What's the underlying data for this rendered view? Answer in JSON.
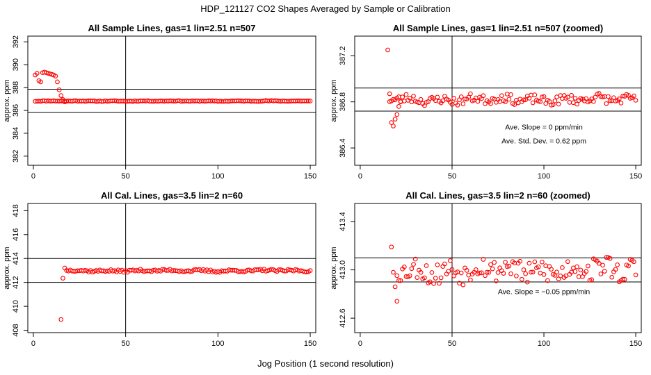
{
  "figure": {
    "title": "HDP_121127  CO2 Shapes Averaged by Sample or Calibration",
    "xlabel": "Jog Position (1 second resolution)"
  },
  "chart_data": [
    {
      "type": "scatter",
      "title": "All Sample Lines, gas=1 lin=2.51 n=507",
      "xlabel": "",
      "ylabel": "approx. ppm",
      "xlim": [
        -3,
        153
      ],
      "ylim": [
        381.2,
        392.5
      ],
      "xticks": [
        0,
        50,
        100,
        150
      ],
      "yticks": [
        382,
        384,
        386,
        388,
        390,
        392
      ],
      "hlines": [
        385.85,
        387.85
      ],
      "vline": 50,
      "color": "#ff0000",
      "marker": "open-circle",
      "gen": {
        "start": 1,
        "end": 150,
        "type": "sample",
        "base": 386.82,
        "noise": 0.03,
        "seed": 11
      },
      "points_head": [
        [
          1,
          389.1
        ],
        [
          2,
          389.25
        ],
        [
          3,
          388.6
        ],
        [
          4,
          388.5
        ],
        [
          5,
          389.3
        ],
        [
          6,
          389.35
        ],
        [
          7,
          389.3
        ],
        [
          8,
          389.25
        ],
        [
          9,
          389.2
        ],
        [
          10,
          389.15
        ],
        [
          11,
          389.1
        ],
        [
          12,
          389.0
        ],
        [
          13,
          388.5
        ],
        [
          14,
          387.8
        ],
        [
          15,
          387.3
        ],
        [
          16,
          386.95
        ],
        [
          17,
          386.75
        ],
        [
          18,
          386.8
        ]
      ],
      "annotations": []
    },
    {
      "type": "scatter",
      "title": "All Sample Lines, gas=1 lin=2.51 n=507 (zoomed)",
      "xlabel": "",
      "ylabel": "approx. ppm",
      "xlim": [
        -3,
        153
      ],
      "ylim": [
        386.25,
        387.37
      ],
      "xticks": [
        0,
        50,
        100,
        150
      ],
      "yticks": [
        386.4,
        386.8,
        387.2
      ],
      "hlines": [
        386.72,
        386.92
      ],
      "vline": 50,
      "color": "#ff0000",
      "marker": "open-circle",
      "gen": {
        "start": 16,
        "end": 150,
        "type": "sample",
        "base": 386.82,
        "noise": 0.035,
        "seed": 23
      },
      "points_head": [
        [
          15,
          387.25
        ],
        [
          16,
          386.87
        ],
        [
          17,
          386.62
        ],
        [
          18,
          386.59
        ],
        [
          19,
          386.65
        ],
        [
          20,
          386.69
        ],
        [
          21,
          386.76
        ],
        [
          22,
          386.8
        ]
      ],
      "annotations": [
        {
          "text": "Ave. Slope =  0  ppm/min",
          "x": 100,
          "y": 386.56
        },
        {
          "text": "Ave. Std. Dev. =  0.62  ppm",
          "x": 100,
          "y": 386.44
        }
      ]
    },
    {
      "type": "scatter",
      "title": "All Cal. Lines, gas=3.5 lin=2 n=60",
      "xlabel": "",
      "ylabel": "approx. ppm",
      "xlim": [
        -3,
        153
      ],
      "ylim": [
        407.8,
        418.6
      ],
      "xticks": [
        0,
        50,
        100,
        150
      ],
      "yticks": [
        408,
        410,
        412,
        414,
        416,
        418
      ],
      "hlines": [
        412.0,
        414.0
      ],
      "vline": 50,
      "color": "#ff0000",
      "marker": "open-circle",
      "gen": {
        "start": 19,
        "end": 150,
        "type": "cal",
        "base": 412.98,
        "noise": 0.09,
        "seed": 37
      },
      "points_head": [
        [
          15,
          408.9
        ],
        [
          16,
          412.35
        ],
        [
          17,
          413.2
        ],
        [
          18,
          413.0
        ]
      ],
      "annotations": []
    },
    {
      "type": "scatter",
      "title": "All Cal. Lines, gas=3.5 lin=2 n=60 (zoomed)",
      "xlabel": "",
      "ylabel": "approx. ppm",
      "xlim": [
        -3,
        153
      ],
      "ylim": [
        412.48,
        413.55
      ],
      "xticks": [
        0,
        50,
        100,
        150
      ],
      "yticks": [
        412.6,
        413.0,
        413.4
      ],
      "hlines": [
        412.9,
        413.1
      ],
      "vline": 50,
      "color": "#ff0000",
      "marker": "open-circle",
      "gen": {
        "start": 20,
        "end": 150,
        "type": "cal",
        "base": 413.0,
        "noise": 0.085,
        "seed": 53
      },
      "points_head": [
        [
          17,
          413.19
        ],
        [
          18,
          412.98
        ],
        [
          19,
          412.86
        ],
        [
          20,
          412.74
        ]
      ],
      "annotations": [
        {
          "text": "Ave. Slope =  −0.05  ppm/min",
          "x": 100,
          "y": 412.8
        }
      ]
    }
  ]
}
